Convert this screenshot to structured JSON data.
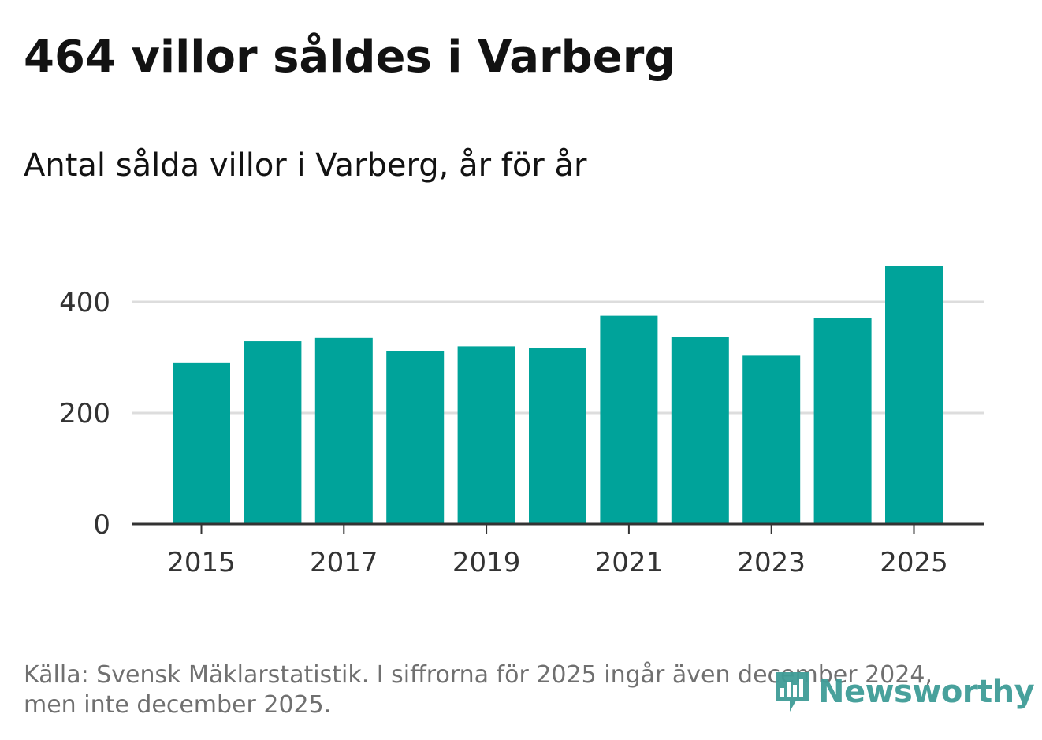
{
  "header": {
    "title": "464 villor såldes i Varberg",
    "subtitle": "Antal sålda villor i Varberg, år för år"
  },
  "footer": {
    "source_line1": "Källa: Svensk Mäklarstatistik. I siffrorna för 2025 ingår även december 2024,",
    "source_line2": "men inte december 2025."
  },
  "brand": {
    "name": "Newsworthy",
    "icon": "newsworthy-logo-icon",
    "color": "#3f9c97"
  },
  "colors": {
    "bar": "#00a39a",
    "grid": "#dddddd",
    "axis": "#333333"
  },
  "chart_data": {
    "type": "bar",
    "title": "464 villor såldes i Varberg",
    "subtitle": "Antal sålda villor i Varberg, år för år",
    "categories": [
      2015,
      2016,
      2017,
      2018,
      2019,
      2020,
      2021,
      2022,
      2023,
      2024,
      2025
    ],
    "values": [
      291,
      329,
      335,
      311,
      320,
      317,
      375,
      337,
      303,
      371,
      464
    ],
    "xtick_labels": [
      "2015",
      "2017",
      "2019",
      "2021",
      "2023",
      "2025"
    ],
    "ytick_values": [
      0,
      200,
      400
    ],
    "ytick_labels": [
      "0",
      "200",
      "400"
    ],
    "ylim": [
      0,
      464
    ],
    "xlabel": "",
    "ylabel": "",
    "grid": true,
    "legend": "none"
  }
}
